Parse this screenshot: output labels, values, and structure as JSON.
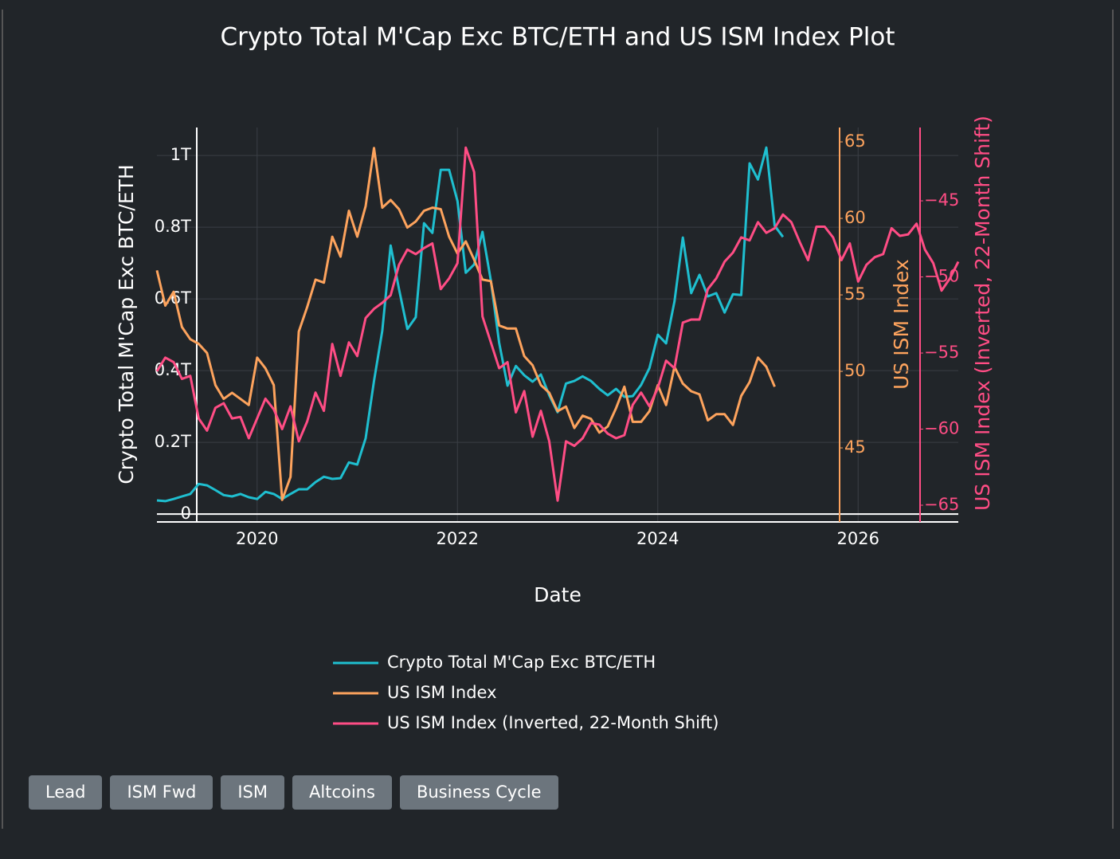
{
  "chart_data": {
    "type": "line",
    "title": "Crypto Total M'Cap Exc BTC/ETH and US ISM Index Plot",
    "xlabel": "Date",
    "ylabel": "Crypto Total M'Cap Exc BTC/ETH",
    "y2label": "US ISM Index",
    "y3label": "US ISM Index (Inverted, 22-Month Shift)",
    "grid": true,
    "x": [
      "2019-01",
      "2019-02",
      "2019-03",
      "2019-04",
      "2019-05",
      "2019-06",
      "2019-07",
      "2019-08",
      "2019-09",
      "2019-10",
      "2019-11",
      "2019-12",
      "2020-01",
      "2020-02",
      "2020-03",
      "2020-04",
      "2020-05",
      "2020-06",
      "2020-07",
      "2020-08",
      "2020-09",
      "2020-10",
      "2020-11",
      "2020-12",
      "2021-01",
      "2021-02",
      "2021-03",
      "2021-04",
      "2021-05",
      "2021-06",
      "2021-07",
      "2021-08",
      "2021-09",
      "2021-10",
      "2021-11",
      "2021-12",
      "2022-01",
      "2022-02",
      "2022-03",
      "2022-04",
      "2022-05",
      "2022-06",
      "2022-07",
      "2022-08",
      "2022-09",
      "2022-10",
      "2022-11",
      "2022-12",
      "2023-01",
      "2023-02",
      "2023-03",
      "2023-04",
      "2023-05",
      "2023-06",
      "2023-07",
      "2023-08",
      "2023-09",
      "2023-10",
      "2023-11",
      "2023-12",
      "2024-01",
      "2024-02",
      "2024-03",
      "2024-04",
      "2024-05",
      "2024-06",
      "2024-07",
      "2024-08",
      "2024-09",
      "2024-10",
      "2024-11",
      "2024-12",
      "2025-01",
      "2025-02",
      "2025-03",
      "2025-04",
      "2025-05",
      "2025-06",
      "2025-07",
      "2025-08",
      "2025-09",
      "2025-10",
      "2025-11",
      "2025-12",
      "2026-01",
      "2026-02",
      "2026-03",
      "2026-04",
      "2026-05",
      "2026-06",
      "2026-07",
      "2026-08",
      "2026-09",
      "2026-10",
      "2026-11",
      "2026-12",
      "2027-01"
    ],
    "xlim": [
      "2019-01",
      "2027-01"
    ],
    "xticks": [
      {
        "value": "2020-01",
        "label": "2020"
      },
      {
        "value": "2022-01",
        "label": "2022"
      },
      {
        "value": "2024-01",
        "label": "2024"
      },
      {
        "value": "2026-01",
        "label": "2026"
      }
    ],
    "ylim": [
      -22000000000.0,
      1078000000000.0
    ],
    "yticks": [
      0,
      {
        "value": 200000000000.0,
        "label": "0.2T"
      },
      {
        "value": 400000000000.0,
        "label": "0.4T"
      },
      {
        "value": 600000000000.0,
        "label": "0.6T"
      },
      {
        "value": 800000000000.0,
        "label": "0.8T"
      },
      {
        "value": 1000000000000.0,
        "label": "1T"
      }
    ],
    "y2lim": [
      40.16,
      65.94
    ],
    "y2ticks": [
      45,
      50,
      55,
      60,
      65
    ],
    "y3lim": [
      -66.1,
      -40.18
    ],
    "y3ticks": [
      {
        "value": -65,
        "label": "−65"
      },
      {
        "value": -60,
        "label": "−60"
      },
      {
        "value": -55,
        "label": "−55"
      },
      {
        "value": -50,
        "label": "−50"
      },
      {
        "value": -45,
        "label": "−45"
      }
    ],
    "series": [
      {
        "name": "Crypto Total M'Cap Exc BTC/ETH",
        "color": "#1fbfd0",
        "axis": "y",
        "values": [
          38000000000.0,
          36000000000.0,
          42000000000.0,
          49000000000.0,
          56000000000.0,
          84000000000.0,
          80000000000.0,
          67000000000.0,
          53000000000.0,
          49000000000.0,
          56000000000.0,
          47000000000.0,
          42000000000.0,
          62000000000.0,
          56000000000.0,
          42000000000.0,
          56000000000.0,
          69000000000.0,
          69000000000.0,
          89000000000.0,
          104000000000.0,
          98000000000.0,
          100000000000.0,
          144000000000.0,
          138000000000.0,
          211000000000.0,
          371000000000.0,
          511000000000.0,
          749000000000.0,
          627000000000.0,
          516000000000.0,
          549000000000.0,
          811000000000.0,
          784000000000.0,
          960000000000.0,
          960000000000.0,
          873000000000.0,
          673000000000.0,
          696000000000.0,
          787000000000.0,
          651000000000.0,
          478000000000.0,
          358000000000.0,
          413000000000.0,
          387000000000.0,
          369000000000.0,
          389000000000.0,
          331000000000.0,
          284000000000.0,
          364000000000.0,
          371000000000.0,
          384000000000.0,
          371000000000.0,
          349000000000.0,
          331000000000.0,
          349000000000.0,
          327000000000.0,
          329000000000.0,
          360000000000.0,
          407000000000.0,
          500000000000.0,
          476000000000.0,
          593000000000.0,
          771000000000.0,
          616000000000.0,
          667000000000.0,
          607000000000.0,
          616000000000.0,
          562000000000.0,
          613000000000.0,
          611000000000.0,
          978000000000.0,
          933000000000.0,
          1022000000000.0,
          804000000000.0,
          773000000000.0,
          null,
          null,
          null,
          null,
          null,
          null,
          null,
          null,
          null,
          null,
          null,
          null,
          null,
          null,
          null,
          null,
          null,
          null,
          null,
          null,
          null
        ]
      },
      {
        "name": "US ISM Index",
        "color": "#fda35d",
        "axis": "y2",
        "values": [
          56.6,
          54.3,
          55.2,
          52.9,
          52.1,
          51.8,
          51.2,
          49.1,
          48.2,
          48.6,
          48.2,
          47.8,
          50.9,
          50.2,
          49.1,
          41.6,
          43.1,
          52.6,
          54.2,
          56.0,
          55.8,
          58.8,
          57.5,
          60.5,
          58.8,
          60.8,
          64.6,
          60.7,
          61.2,
          60.6,
          59.4,
          59.8,
          60.5,
          60.7,
          60.6,
          58.8,
          57.7,
          58.5,
          57.3,
          56.0,
          55.9,
          53.0,
          52.8,
          52.8,
          51.0,
          50.4,
          49.1,
          48.6,
          47.4,
          47.7,
          46.3,
          47.1,
          46.9,
          46.0,
          46.4,
          47.6,
          49.0,
          46.7,
          46.7,
          47.4,
          49.1,
          47.8,
          50.3,
          49.2,
          48.7,
          48.5,
          46.8,
          47.2,
          47.2,
          46.5,
          48.4,
          49.3,
          50.9,
          50.3,
          49.0,
          null,
          null,
          null,
          null,
          null,
          null,
          null,
          null,
          null,
          null,
          null,
          null,
          null,
          null,
          null,
          null,
          null,
          null,
          null,
          null,
          null,
          null
        ]
      },
      {
        "name": "US ISM Index (Inverted, 22-Month Shift)",
        "color": "#ff4d85",
        "axis": "y3",
        "values": [
          -56.2,
          -55.3,
          -55.6,
          -56.7,
          -56.5,
          -59.3,
          -60.1,
          -58.6,
          -58.3,
          -59.3,
          -59.2,
          -60.6,
          -59.3,
          -58.0,
          -58.7,
          -60.0,
          -58.5,
          -60.8,
          -59.5,
          -57.6,
          -58.8,
          -54.4,
          -56.5,
          -54.3,
          -55.2,
          -52.7,
          -52.1,
          -51.7,
          -51.2,
          -49.2,
          -48.2,
          -48.5,
          -48.1,
          -47.8,
          -50.8,
          -50.1,
          -49.1,
          -41.5,
          -43.1,
          -52.6,
          -54.3,
          -56.0,
          -55.6,
          -58.9,
          -57.5,
          -60.5,
          -58.8,
          -60.8,
          -64.7,
          -60.8,
          -61.1,
          -60.6,
          -59.6,
          -59.7,
          -60.3,
          -60.6,
          -60.4,
          -58.4,
          -57.6,
          -58.5,
          -57.3,
          -55.5,
          -56.0,
          -53.0,
          -52.8,
          -52.8,
          -50.8,
          -50.1,
          -49.0,
          -48.4,
          -47.4,
          -47.6,
          -46.4,
          -47.1,
          -46.8,
          -45.9,
          -46.4,
          -47.7,
          -48.9,
          -46.7,
          -46.7,
          -47.4,
          -48.9,
          -47.8,
          -50.3,
          -49.2,
          -48.7,
          -48.5,
          -46.8,
          -47.3,
          -47.2,
          -46.5,
          -48.2,
          -49.1,
          -50.9,
          -50.1,
          -49.0
        ]
      }
    ]
  },
  "buttons": [
    "Lead",
    "ISM Fwd",
    "ISM",
    "Altcoins",
    "Business Cycle"
  ]
}
